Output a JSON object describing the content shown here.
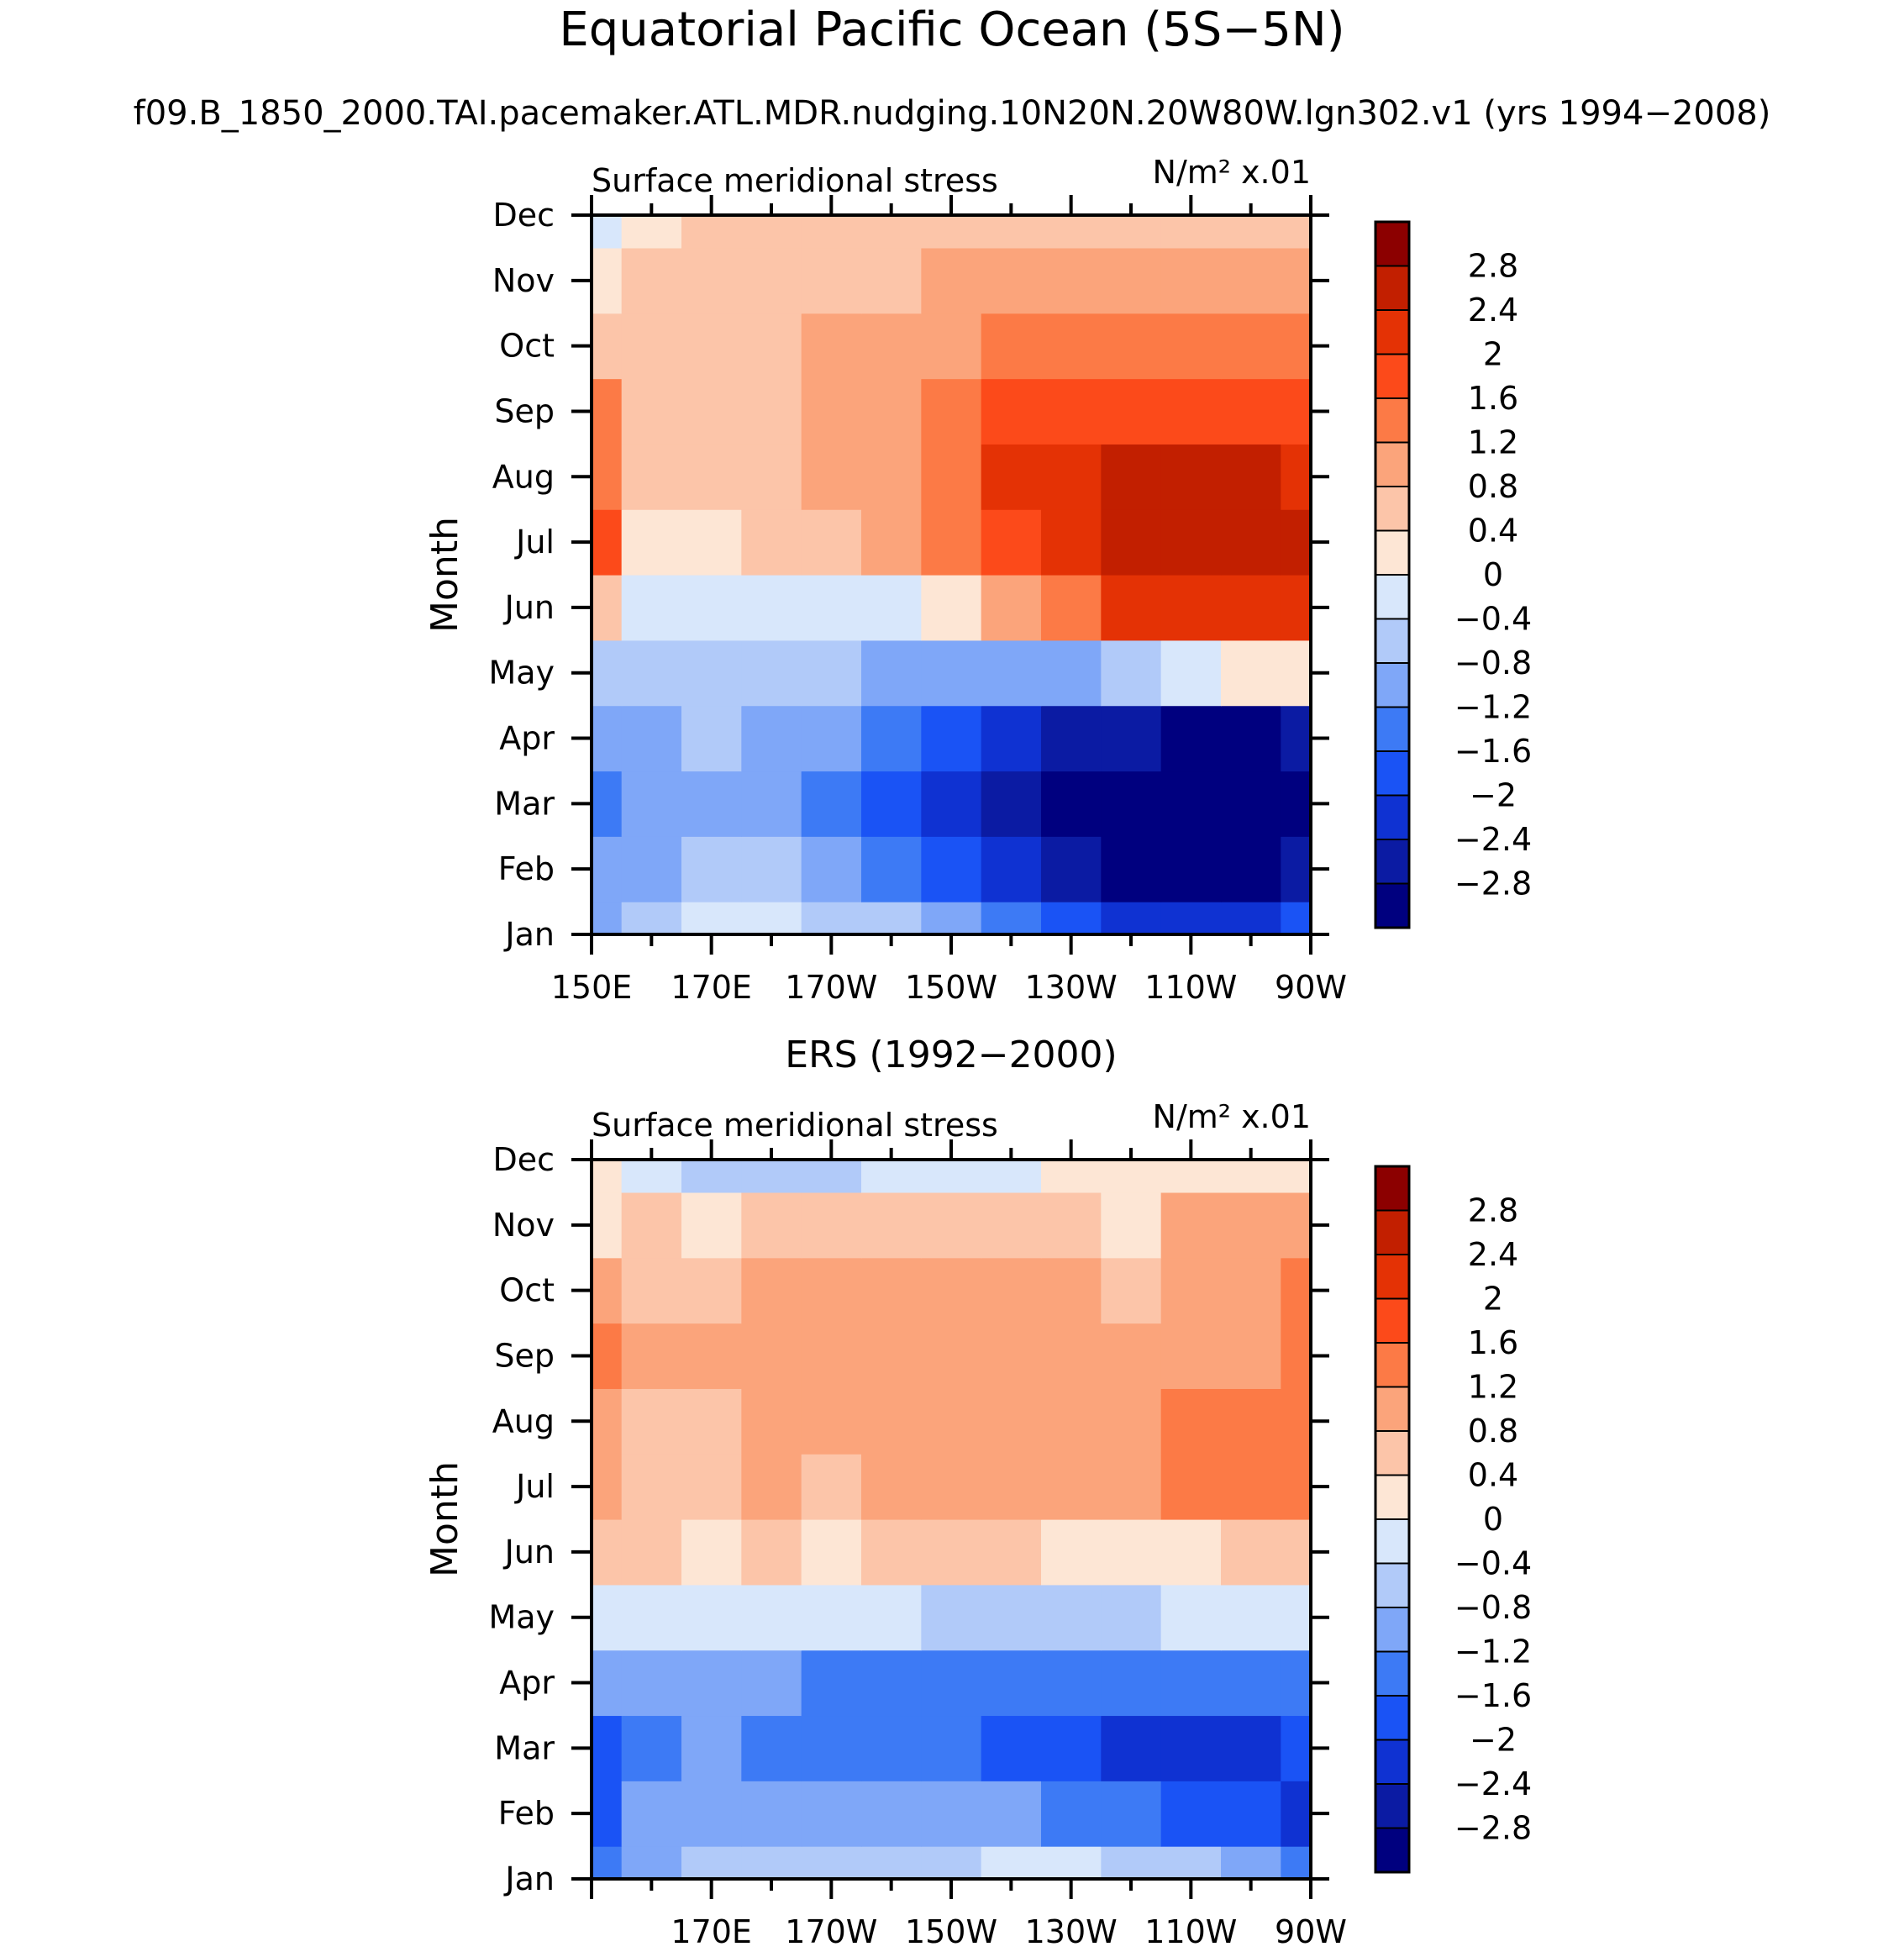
{
  "page": {
    "title": "Equatorial Pacific Ocean (5S−5N)",
    "subtitle": "f09.B_1850_2000.TAI.pacemaker.ATL.MDR.nudging.10N20N.20W80W.lgn302.v1 (yrs 1994−2008)"
  },
  "colors": {
    "scale": [
      "#00007f",
      "#0b1ba3",
      "#0f32d2",
      "#1a53f5",
      "#3d7af5",
      "#7fa7f8",
      "#b1caf9",
      "#d8e7fb",
      "#fde6d5",
      "#fcc5a9",
      "#fba47b",
      "#fc7a46",
      "#fc4a1a",
      "#e43205",
      "#c21f00",
      "#8c0000"
    ],
    "axis": "#000000"
  },
  "chart_data": [
    {
      "type": "heatmap",
      "panel_title": "",
      "variable_label": "Surface meridional stress",
      "units_label": "N/m² x.01",
      "ylabel": "Month",
      "xlabel": "",
      "x": [
        150,
        160,
        170,
        180,
        190,
        200,
        210,
        220,
        230,
        240,
        250,
        260,
        270
      ],
      "x_tick_values": [
        150,
        170,
        190,
        210,
        230,
        250,
        270
      ],
      "x_tick_labels": [
        "150E",
        "170E",
        "170W",
        "150W",
        "130W",
        "110W",
        "90W"
      ],
      "xlim": [
        150,
        270
      ],
      "y_labels": [
        "Jan",
        "Feb",
        "Mar",
        "Apr",
        "May",
        "Jun",
        "Jul",
        "Aug",
        "Sep",
        "Oct",
        "Nov",
        "Dec"
      ],
      "ylim": [
        1,
        12
      ],
      "contour_levels": [
        -2.8,
        -2.4,
        -2,
        -1.6,
        -1.2,
        -0.8,
        -0.4,
        0,
        0.4,
        0.8,
        1.2,
        1.6,
        2,
        2.4,
        2.8
      ],
      "colorbar_labels": [
        "2.8",
        "2.4",
        "2",
        "1.6",
        "1.2",
        "0.8",
        "0.4",
        "0",
        "−0.4",
        "−0.8",
        "−1.2",
        "−1.6",
        "−2",
        "−2.4",
        "−2.8"
      ],
      "z": [
        [
          -0.9,
          -0.5,
          -0.3,
          -0.4,
          -0.6,
          -0.8,
          -1.2,
          -1.6,
          -2.0,
          -2.2,
          -2.4,
          -2.2,
          -1.8
        ],
        [
          -1.2,
          -0.9,
          -0.7,
          -0.8,
          -1.0,
          -1.4,
          -1.9,
          -2.4,
          -2.8,
          -3.0,
          -3.0,
          -3.0,
          -2.8
        ],
        [
          -1.3,
          -1.1,
          -1.1,
          -1.2,
          -1.3,
          -1.7,
          -2.2,
          -2.6,
          -2.9,
          -3.1,
          -3.1,
          -3.1,
          -3.0
        ],
        [
          -1.2,
          -0.9,
          -0.8,
          -0.9,
          -1.0,
          -1.4,
          -1.9,
          -2.3,
          -2.6,
          -2.8,
          -2.9,
          -2.9,
          -2.8
        ],
        [
          -0.8,
          -0.6,
          -0.6,
          -0.6,
          -0.8,
          -1.0,
          -1.2,
          -1.2,
          -1.0,
          -0.5,
          -0.1,
          0.1,
          0.0
        ],
        [
          0.6,
          -0.2,
          -0.3,
          -0.3,
          -0.3,
          -0.2,
          0.2,
          0.8,
          1.5,
          2.0,
          2.2,
          2.2,
          2.1
        ],
        [
          1.8,
          0.3,
          0.3,
          0.4,
          0.5,
          0.8,
          1.3,
          1.9,
          2.3,
          2.5,
          2.6,
          2.7,
          2.5
        ],
        [
          1.5,
          0.6,
          0.6,
          0.7,
          0.8,
          1.1,
          1.5,
          2.0,
          2.3,
          2.4,
          2.4,
          2.4,
          2.3
        ],
        [
          1.2,
          0.5,
          0.5,
          0.6,
          0.8,
          1.0,
          1.3,
          1.6,
          1.8,
          1.8,
          1.8,
          1.7,
          1.6
        ],
        [
          0.4,
          0.5,
          0.5,
          0.6,
          0.8,
          0.9,
          1.1,
          1.2,
          1.2,
          1.2,
          1.2,
          1.2,
          1.2
        ],
        [
          0.1,
          0.4,
          0.4,
          0.5,
          0.6,
          0.7,
          0.8,
          0.8,
          0.8,
          0.9,
          0.9,
          0.8,
          0.8
        ],
        [
          -0.2,
          0.3,
          0.4,
          0.4,
          0.5,
          0.5,
          0.6,
          0.6,
          0.6,
          0.7,
          0.6,
          0.4,
          0.5
        ]
      ]
    },
    {
      "type": "heatmap",
      "panel_title": "ERS (1992−2000)",
      "variable_label": "Surface meridional stress",
      "units_label": "N/m² x.01",
      "ylabel": "Month",
      "xlabel": "",
      "x": [
        150,
        160,
        170,
        180,
        190,
        200,
        210,
        220,
        230,
        240,
        250,
        260,
        270
      ],
      "x_tick_values": [
        170,
        190,
        210,
        230,
        250,
        270
      ],
      "x_tick_labels": [
        "170E",
        "170W",
        "150W",
        "130W",
        "110W",
        "90W"
      ],
      "xlim": [
        150,
        270
      ],
      "y_labels": [
        "Jan",
        "Feb",
        "Mar",
        "Apr",
        "May",
        "Jun",
        "Jul",
        "Aug",
        "Sep",
        "Oct",
        "Nov",
        "Dec"
      ],
      "ylim": [
        1,
        12
      ],
      "contour_levels": [
        -2.8,
        -2.4,
        -2,
        -1.6,
        -1.2,
        -0.8,
        -0.4,
        0,
        0.4,
        0.8,
        1.2,
        1.6,
        2,
        2.4,
        2.8
      ],
      "colorbar_labels": [
        "2.8",
        "2.4",
        "2",
        "1.6",
        "1.2",
        "0.8",
        "0.4",
        "0",
        "−0.4",
        "−0.8",
        "−1.2",
        "−1.6",
        "−2",
        "−2.4",
        "−2.8"
      ],
      "z": [
        [
          -1.4,
          -1.0,
          -0.5,
          -0.7,
          -0.7,
          -0.6,
          -0.5,
          -0.3,
          -0.3,
          -0.5,
          -0.7,
          -1.0,
          -1.4
        ],
        [
          -1.9,
          -1.2,
          -1.2,
          -1.0,
          -1.2,
          -1.2,
          -1.2,
          -1.2,
          -1.4,
          -1.6,
          -1.8,
          -2.0,
          -2.1
        ],
        [
          -1.9,
          -1.4,
          -1.1,
          -1.3,
          -1.3,
          -1.3,
          -1.3,
          -1.7,
          -2.0,
          -2.2,
          -2.1,
          -2.2,
          -2.0
        ],
        [
          -1.0,
          -0.9,
          -0.9,
          -1.0,
          -1.3,
          -1.5,
          -1.4,
          -1.6,
          -1.5,
          -1.5,
          -1.5,
          -1.6,
          -1.5
        ],
        [
          -0.2,
          -0.4,
          -0.4,
          -0.3,
          -0.3,
          -0.4,
          -0.5,
          -0.6,
          -0.6,
          -0.5,
          -0.4,
          -0.4,
          -0.4
        ],
        [
          0.5,
          0.4,
          0.3,
          0.4,
          0.3,
          0.4,
          0.4,
          0.5,
          0.2,
          0.3,
          0.3,
          0.6,
          0.4
        ],
        [
          0.8,
          0.6,
          0.6,
          0.8,
          0.7,
          0.8,
          0.9,
          0.9,
          1.0,
          1.1,
          1.3,
          1.3,
          1.4
        ],
        [
          0.9,
          0.6,
          0.6,
          0.9,
          0.8,
          1.0,
          1.0,
          0.9,
          1.0,
          1.0,
          1.4,
          1.4,
          1.4
        ],
        [
          1.3,
          0.8,
          0.8,
          1.0,
          0.9,
          0.9,
          1.0,
          0.9,
          1.1,
          0.9,
          1.0,
          1.1,
          1.5
        ],
        [
          1.0,
          0.7,
          0.6,
          0.8,
          0.9,
          0.8,
          1.0,
          0.9,
          0.9,
          0.7,
          0.9,
          1.0,
          1.3
        ],
        [
          0.3,
          0.4,
          0.3,
          0.5,
          0.5,
          0.4,
          0.5,
          0.4,
          0.4,
          0.3,
          0.8,
          0.9,
          0.9
        ],
        [
          0.0,
          -0.3,
          -0.5,
          -0.5,
          -0.5,
          -0.3,
          -0.3,
          -0.1,
          0.2,
          0.3,
          0.3,
          0.3,
          0.2
        ]
      ]
    }
  ]
}
